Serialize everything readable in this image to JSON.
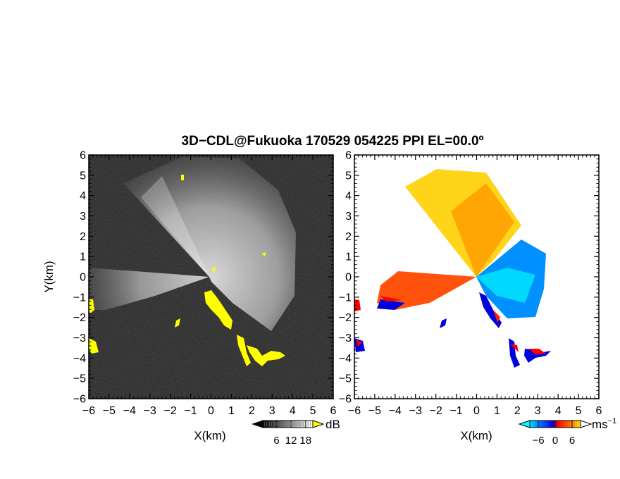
{
  "title": "3D−CDL@Fukuoka 170529 054225 PPI EL=00.0º",
  "chart_data": [
    {
      "type": "heatmap",
      "panel": "left",
      "quantity": "backscatter intensity",
      "xlabel": "X(km)",
      "ylabel": "Y(km)",
      "xlim": [
        -6,
        6
      ],
      "ylim": [
        -6,
        6
      ],
      "xticks": [
        "−6",
        "−5",
        "−4",
        "−3",
        "−2",
        "−1",
        "0",
        "1",
        "2",
        "3",
        "4",
        "5",
        "6"
      ],
      "yticks": [
        "6",
        "5",
        "4",
        "3",
        "2",
        "1",
        "0",
        "−1",
        "−2",
        "−3",
        "−4",
        "−5",
        "−6"
      ],
      "colorbar": {
        "unit": "dB",
        "ticks": [
          "6",
          "12",
          "18"
        ],
        "tick_values": [
          6,
          12,
          18
        ],
        "range": [
          0,
          21
        ],
        "colors": [
          "#000000",
          "#ffffff"
        ],
        "over_color": "#ffff00"
      },
      "background_color": "#1e1e1e",
      "strong_echo_color": "#ffff00"
    },
    {
      "type": "heatmap",
      "panel": "right",
      "quantity": "radial velocity",
      "xlabel": "X(km)",
      "xlim": [
        -6,
        6
      ],
      "ylim": [
        -6,
        6
      ],
      "xticks": [
        "−6",
        "−5",
        "−4",
        "−3",
        "−2",
        "−1",
        "0",
        "1",
        "2",
        "3",
        "4",
        "5",
        "6"
      ],
      "yticks": [
        "6",
        "5",
        "4",
        "3",
        "2",
        "1",
        "0",
        "−1",
        "−2",
        "−3",
        "−4",
        "−5",
        "−6"
      ],
      "colorbar": {
        "unit": "ms",
        "unit_exp": "−1",
        "ticks": [
          "−6",
          "0",
          "6"
        ],
        "tick_values": [
          -6,
          0,
          6
        ],
        "range": [
          -9,
          9
        ],
        "under_color": "#00ffff",
        "over_color": "#ffffff",
        "colors": [
          "#00e0ff",
          "#0070ff",
          "#0000dd",
          "#ff0000",
          "#ff7000",
          "#ffe000"
        ]
      },
      "background_color": "#ffffff"
    }
  ]
}
